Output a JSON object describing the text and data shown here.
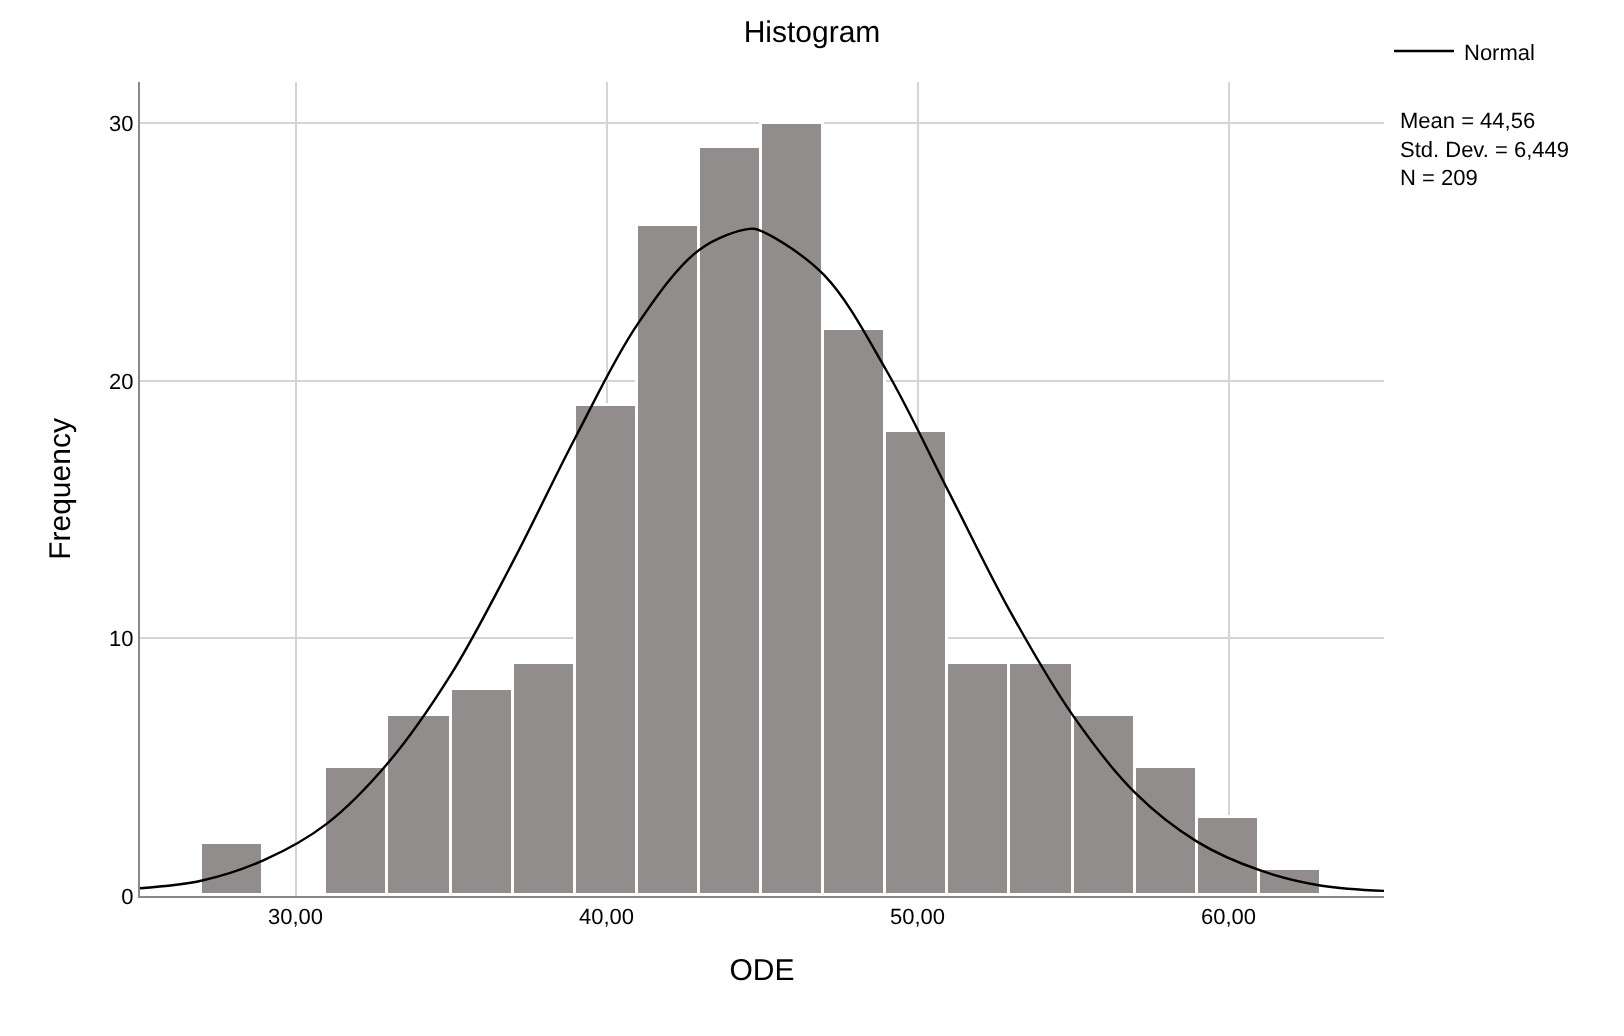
{
  "chart_data": {
    "type": "histogram",
    "title": "Histogram",
    "xlabel": "ODE",
    "ylabel": "Frequency",
    "bins": [
      27,
      29,
      31,
      33,
      35,
      37,
      39,
      41,
      43,
      45,
      47,
      49,
      51,
      53,
      55,
      57,
      59,
      61,
      63
    ],
    "values": [
      2,
      0,
      5,
      7,
      8,
      9,
      19,
      26,
      29,
      30,
      22,
      18,
      9,
      9,
      7,
      5,
      3,
      1
    ],
    "color": "#918d8c",
    "series": [
      {
        "type": "line",
        "name": "Normal",
        "color": "#000000",
        "x": [
          25,
          27,
          29,
          31,
          33,
          35,
          37,
          39,
          41,
          43,
          44.6,
          45,
          47,
          49,
          51,
          53,
          55,
          57,
          59,
          61,
          63,
          65
        ],
        "values": [
          0.3,
          0.6,
          1.4,
          2.8,
          5.2,
          8.6,
          13.0,
          17.8,
          22.2,
          25.1,
          25.9,
          25.8,
          24.1,
          20.4,
          15.7,
          11.0,
          7.0,
          4.0,
          2.1,
          1.0,
          0.4,
          0.2
        ]
      }
    ],
    "xlim": [
      25,
      65
    ],
    "xticks": [
      {
        "value": 30,
        "label": "30,00"
      },
      {
        "value": 40,
        "label": "40,00"
      },
      {
        "value": 50,
        "label": "50,00"
      },
      {
        "value": 60,
        "label": "60,00"
      }
    ],
    "ylim": [
      0,
      31.6
    ],
    "yticks": [
      0,
      10,
      20,
      30
    ],
    "grid": true,
    "legend": "top right",
    "annotations": [
      "Mean = 44,56\nStd. Dev. = 6,449\nN = 209"
    ]
  }
}
